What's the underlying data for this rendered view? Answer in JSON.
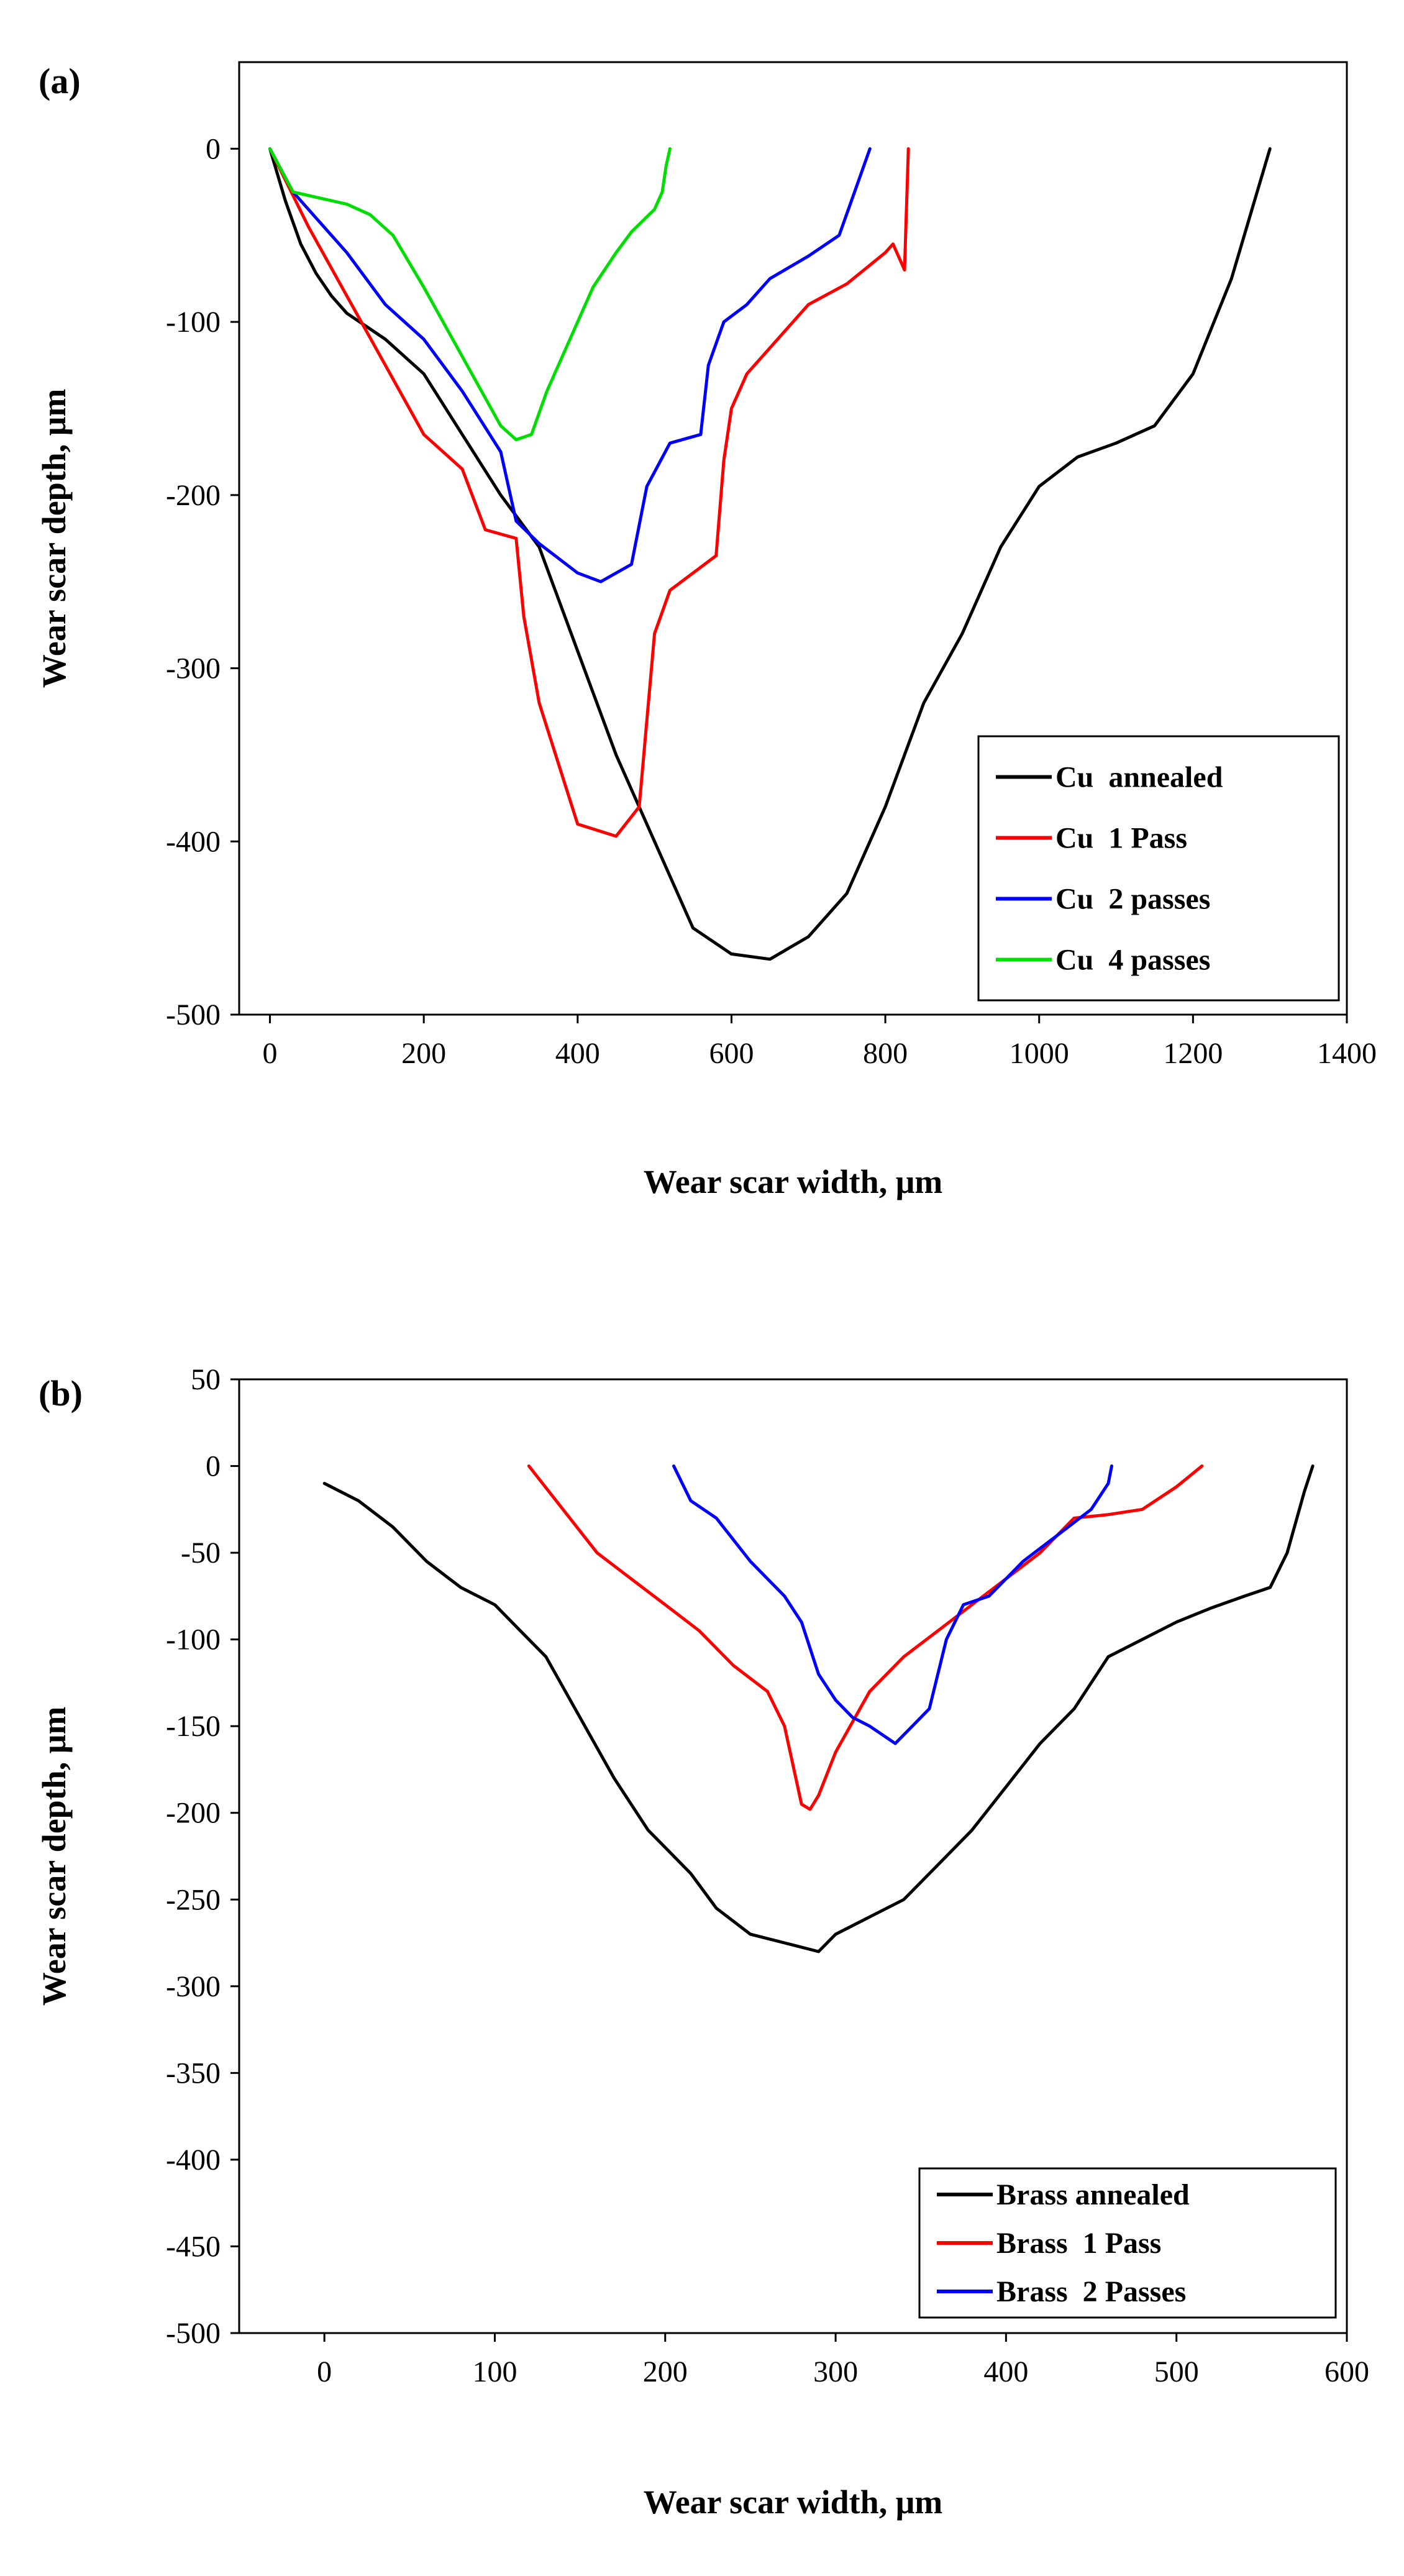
{
  "figure": {
    "panels": [
      "(a)",
      "(b)"
    ]
  },
  "chart_data": [
    {
      "panel": "(a)",
      "type": "line",
      "title": "",
      "xlabel": "Wear scar width, μm",
      "ylabel": "Wear scar depth, μm",
      "xlim": [
        -40,
        1400
      ],
      "ylim": [
        -500,
        50
      ],
      "xticks": [
        0,
        200,
        400,
        600,
        800,
        1000,
        1200,
        1400
      ],
      "yticks": [
        0,
        -100,
        -200,
        -300,
        -400,
        -500
      ],
      "grid": false,
      "legend_position": "bottom-right",
      "series": [
        {
          "name": "Cu  annealed",
          "color": "#000000",
          "x": [
            0,
            20,
            40,
            60,
            80,
            100,
            150,
            200,
            250,
            300,
            350,
            400,
            450,
            500,
            550,
            600,
            650,
            700,
            750,
            800,
            850,
            900,
            950,
            1000,
            1050,
            1100,
            1150,
            1200,
            1250,
            1300
          ],
          "y": [
            0,
            -30,
            -55,
            -72,
            -85,
            -95,
            -110,
            -130,
            -165,
            -200,
            -230,
            -290,
            -350,
            -400,
            -450,
            -465,
            -468,
            -455,
            -430,
            -380,
            -320,
            -280,
            -230,
            -195,
            -178,
            -170,
            -160,
            -130,
            -75,
            0
          ]
        },
        {
          "name": "Cu  1 Pass",
          "color": "#ff0000",
          "x": [
            0,
            50,
            100,
            150,
            200,
            250,
            280,
            320,
            330,
            350,
            400,
            450,
            480,
            500,
            520,
            580,
            590,
            600,
            620,
            660,
            680,
            700,
            750,
            800,
            810,
            820,
            825,
            830
          ],
          "y": [
            0,
            -45,
            -85,
            -125,
            -165,
            -185,
            -220,
            -225,
            -270,
            -320,
            -390,
            -397,
            -380,
            -280,
            -255,
            -235,
            -180,
            -150,
            -130,
            -110,
            -100,
            -90,
            -78,
            -60,
            -55,
            -65,
            -70,
            0
          ]
        },
        {
          "name": "Cu  2 passes",
          "color": "#0000ff",
          "x": [
            0,
            30,
            60,
            100,
            150,
            200,
            250,
            300,
            320,
            350,
            400,
            430,
            470,
            490,
            520,
            560,
            570,
            590,
            620,
            650,
            700,
            740,
            760,
            780
          ],
          "y": [
            0,
            -25,
            -40,
            -60,
            -90,
            -110,
            -140,
            -175,
            -215,
            -228,
            -245,
            -250,
            -240,
            -195,
            -170,
            -165,
            -125,
            -100,
            -90,
            -75,
            -62,
            -50,
            -25,
            0
          ]
        },
        {
          "name": "Cu  4 passes",
          "color": "#00dd00",
          "x": [
            0,
            30,
            60,
            100,
            130,
            160,
            200,
            250,
            300,
            320,
            340,
            360,
            400,
            420,
            450,
            470,
            500,
            510,
            515,
            520
          ],
          "y": [
            0,
            -25,
            -28,
            -32,
            -38,
            -50,
            -80,
            -120,
            -160,
            -168,
            -165,
            -140,
            -100,
            -80,
            -60,
            -48,
            -35,
            -25,
            -10,
            0
          ]
        }
      ]
    },
    {
      "panel": "(b)",
      "type": "line",
      "title": "",
      "xlabel": "Wear scar width, μm",
      "ylabel": "Wear scar depth, μm",
      "xlim": [
        -50,
        600
      ],
      "ylim": [
        -500,
        50
      ],
      "xticks": [
        0,
        100,
        200,
        300,
        400,
        500,
        600
      ],
      "yticks": [
        50,
        0,
        -50,
        -100,
        -150,
        -200,
        -250,
        -300,
        -350,
        -400,
        -450,
        -500
      ],
      "grid": false,
      "legend_position": "bottom-right",
      "series": [
        {
          "name": "Brass annealed",
          "color": "#000000",
          "x": [
            0,
            20,
            40,
            60,
            80,
            100,
            115,
            130,
            150,
            170,
            190,
            200,
            215,
            230,
            250,
            270,
            290,
            300,
            320,
            340,
            360,
            380,
            400,
            420,
            440,
            460,
            480,
            500,
            520,
            540,
            555,
            565,
            575,
            580
          ],
          "y": [
            -10,
            -20,
            -35,
            -55,
            -70,
            -80,
            -95,
            -110,
            -145,
            -180,
            -210,
            -220,
            -235,
            -255,
            -270,
            -275,
            -280,
            -270,
            -260,
            -250,
            -230,
            -210,
            -185,
            -160,
            -140,
            -110,
            -100,
            -90,
            -82,
            -75,
            -70,
            -50,
            -15,
            0
          ],
          "x_fix": [
            0,
            20,
            40,
            60,
            80,
            100,
            115,
            130,
            150,
            170,
            190,
            200,
            215,
            230,
            250,
            270,
            290,
            300,
            320,
            340,
            360,
            380,
            400,
            420,
            440,
            460,
            480,
            500,
            520,
            540,
            555,
            565,
            575,
            580
          ]
        },
        {
          "name": "Brass  1 Pass",
          "color": "#ff0000",
          "x": [
            120,
            140,
            160,
            180,
            200,
            220,
            240,
            260,
            270,
            280,
            285,
            290,
            300,
            320,
            340,
            360,
            380,
            400,
            420,
            440,
            460,
            480,
            500,
            515
          ],
          "y": [
            0,
            -25,
            -50,
            -65,
            -80,
            -95,
            -115,
            -130,
            -150,
            -195,
            -198,
            -190,
            -165,
            -130,
            -110,
            -95,
            -80,
            -65,
            -50,
            -30,
            -28,
            -25,
            -12,
            0
          ]
        },
        {
          "name": "Brass  2 Passes",
          "color": "#0000ff",
          "x": [
            205,
            215,
            230,
            250,
            270,
            280,
            290,
            300,
            310,
            320,
            335,
            345,
            355,
            365,
            375,
            390,
            400,
            410,
            430,
            450,
            460,
            462
          ],
          "y": [
            0,
            -20,
            -30,
            -55,
            -75,
            -90,
            -120,
            -135,
            -145,
            -150,
            -160,
            -150,
            -140,
            -100,
            -80,
            -75,
            -65,
            -55,
            -40,
            -25,
            -10,
            0
          ]
        }
      ]
    }
  ]
}
